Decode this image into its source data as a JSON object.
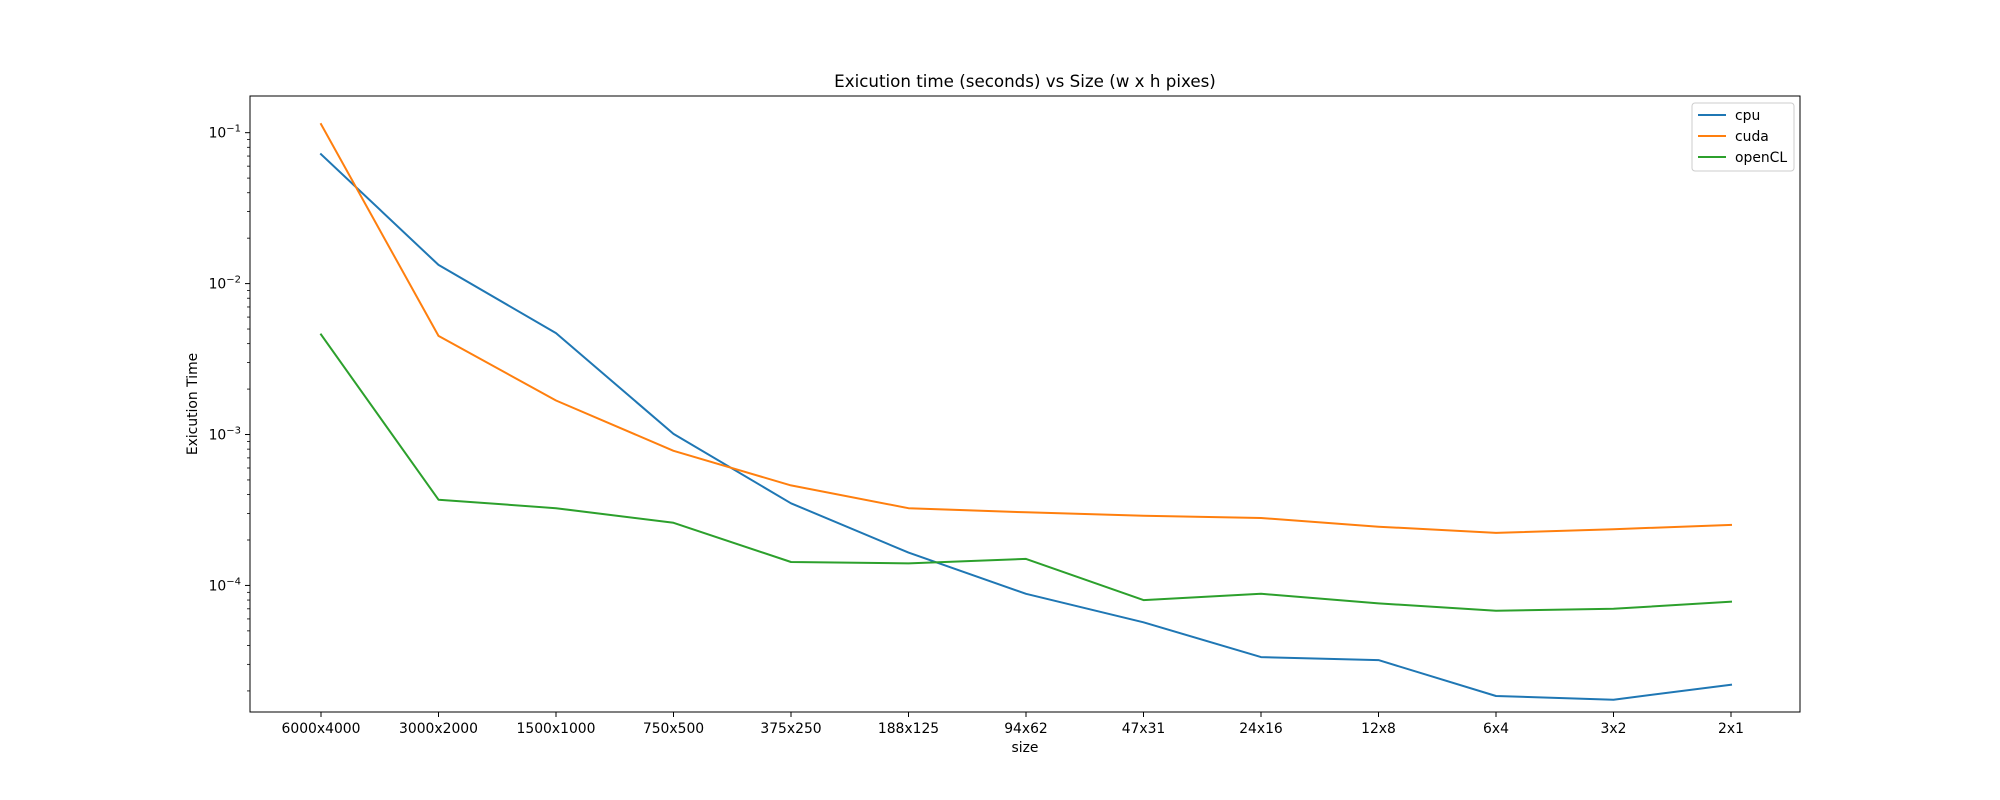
{
  "chart_data": {
    "type": "line",
    "title": "Exicution time (seconds) vs Size (w x h pixes)",
    "xlabel": "size",
    "ylabel": "Exicution Time",
    "y_scale": "log",
    "ylim": [
      1.45e-05,
      0.175
    ],
    "y_ticks": [
      {
        "value": 0.1,
        "base": "10",
        "exp": "−1"
      },
      {
        "value": 0.01,
        "base": "10",
        "exp": "−2"
      },
      {
        "value": 0.001,
        "base": "10",
        "exp": "−3"
      },
      {
        "value": 0.0001,
        "base": "10",
        "exp": "−4"
      }
    ],
    "categories": [
      "6000x4000",
      "3000x2000",
      "1500x1000",
      "750x500",
      "375x250",
      "188x125",
      "94x62",
      "47x31",
      "24x16",
      "12x8",
      "6x4",
      "3x2",
      "2x1"
    ],
    "series": [
      {
        "name": "cpu",
        "color": "#1f77b4",
        "values": [
          0.072,
          0.0133,
          0.0047,
          0.00101,
          0.00035,
          0.000165,
          8.8e-05,
          5.7e-05,
          3.35e-05,
          3.2e-05,
          1.85e-05,
          1.75e-05,
          2.2e-05
        ]
      },
      {
        "name": "cuda",
        "color": "#ff7f0e",
        "values": [
          0.114,
          0.0045,
          0.00168,
          0.00078,
          0.00046,
          0.000325,
          0.000305,
          0.00029,
          0.00028,
          0.000245,
          0.000223,
          0.000236,
          0.000252
        ]
      },
      {
        "name": "openCL",
        "color": "#2ca02c",
        "values": [
          0.0046,
          0.00037,
          0.000325,
          0.00026,
          0.000143,
          0.00014,
          0.00015,
          8e-05,
          8.8e-05,
          7.6e-05,
          6.8e-05,
          7e-05,
          7.8e-05
        ]
      }
    ],
    "legend": "top-right",
    "grid": false
  }
}
